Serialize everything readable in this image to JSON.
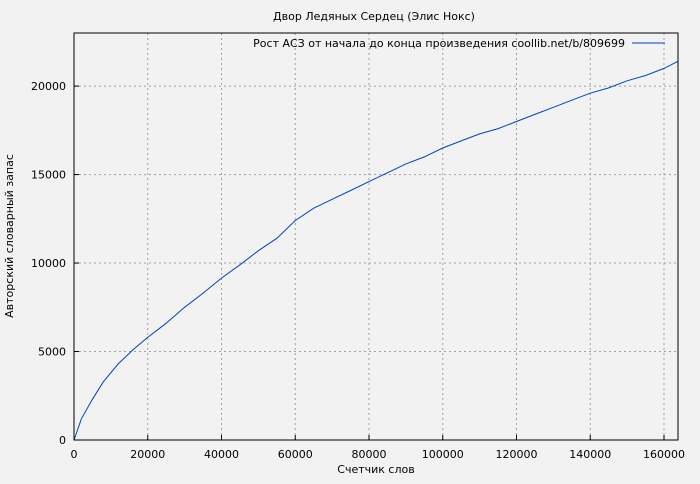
{
  "chart_data": {
    "type": "line",
    "title": "Двор Ледяных Сердец (Элис Нокс)",
    "xlabel": "Счетчик слов",
    "ylabel": "Авторский словарный запас",
    "xlim": [
      0,
      163800
    ],
    "ylim": [
      0,
      23000
    ],
    "xticks": [
      0,
      20000,
      40000,
      60000,
      80000,
      100000,
      120000,
      140000,
      160000
    ],
    "yticks": [
      0,
      5000,
      10000,
      15000,
      20000
    ],
    "grid": true,
    "legend_position": "top-right",
    "colors": {
      "series": "#0044bb",
      "background": "#f2f2f2",
      "grid": "#a0a0a0"
    },
    "series": [
      {
        "name": "Рост АСЗ от начала до конца произведения coollib.net/b/809699",
        "x": [
          0,
          2000,
          5000,
          8000,
          12000,
          16000,
          20000,
          25000,
          30000,
          35000,
          40000,
          45000,
          50000,
          55000,
          60000,
          65000,
          70000,
          75000,
          80000,
          85000,
          90000,
          95000,
          100000,
          105000,
          110000,
          115000,
          120000,
          125000,
          130000,
          135000,
          140000,
          145000,
          150000,
          155000,
          160000,
          163800
        ],
        "y": [
          0,
          1200,
          2300,
          3300,
          4300,
          5100,
          5800,
          6600,
          7500,
          8300,
          9150,
          9900,
          10700,
          11400,
          12400,
          13100,
          13600,
          14100,
          14600,
          15100,
          15600,
          16000,
          16500,
          16900,
          17300,
          17600,
          18000,
          18400,
          18800,
          19200,
          19600,
          19900,
          20300,
          20600,
          21000,
          21400
        ]
      }
    ]
  }
}
